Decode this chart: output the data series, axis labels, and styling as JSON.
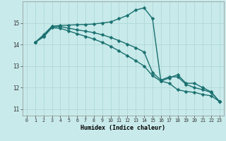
{
  "title": "",
  "xlabel": "Humidex (Indice chaleur)",
  "bg_color": "#c8eaea",
  "grid_color": "#b0d8d8",
  "line_color": "#1a7070",
  "xlim": [
    -0.5,
    23.5
  ],
  "ylim": [
    10.7,
    16.0
  ],
  "xticks": [
    0,
    1,
    2,
    3,
    4,
    5,
    6,
    7,
    8,
    9,
    10,
    11,
    12,
    13,
    14,
    15,
    16,
    17,
    18,
    19,
    20,
    21,
    22,
    23
  ],
  "yticks": [
    11,
    12,
    13,
    14,
    15
  ],
  "line1_x": [
    1,
    2,
    3,
    4,
    5,
    6,
    7,
    8,
    9,
    10,
    11,
    12,
    13,
    14,
    15,
    16,
    17,
    18,
    19,
    20,
    21,
    22,
    23
  ],
  "line1_y": [
    14.1,
    14.45,
    14.85,
    14.88,
    14.9,
    14.92,
    14.93,
    14.95,
    15.0,
    15.05,
    15.2,
    15.35,
    15.6,
    15.7,
    15.2,
    12.3,
    12.45,
    12.6,
    12.2,
    12.2,
    12.0,
    11.8,
    11.35
  ],
  "line2_x": [
    1,
    2,
    3,
    4,
    5,
    6,
    7,
    8,
    9,
    10,
    11,
    12,
    13,
    14,
    15,
    16,
    17,
    18,
    19,
    20,
    21,
    22,
    23
  ],
  "line2_y": [
    14.1,
    14.4,
    14.83,
    14.83,
    14.76,
    14.68,
    14.62,
    14.55,
    14.45,
    14.33,
    14.18,
    14.02,
    13.85,
    13.65,
    12.7,
    12.35,
    12.5,
    12.5,
    12.15,
    12.0,
    11.9,
    11.78,
    11.35
  ],
  "line3_x": [
    1,
    2,
    3,
    4,
    5,
    6,
    7,
    8,
    9,
    10,
    11,
    12,
    13,
    14,
    15,
    16,
    17,
    18,
    19,
    20,
    21,
    22,
    23
  ],
  "line3_y": [
    14.1,
    14.35,
    14.78,
    14.75,
    14.63,
    14.5,
    14.38,
    14.25,
    14.1,
    13.92,
    13.7,
    13.48,
    13.25,
    13.0,
    12.55,
    12.3,
    12.2,
    11.9,
    11.82,
    11.78,
    11.68,
    11.62,
    11.35
  ],
  "markersize": 2.5,
  "linewidth": 1.0
}
